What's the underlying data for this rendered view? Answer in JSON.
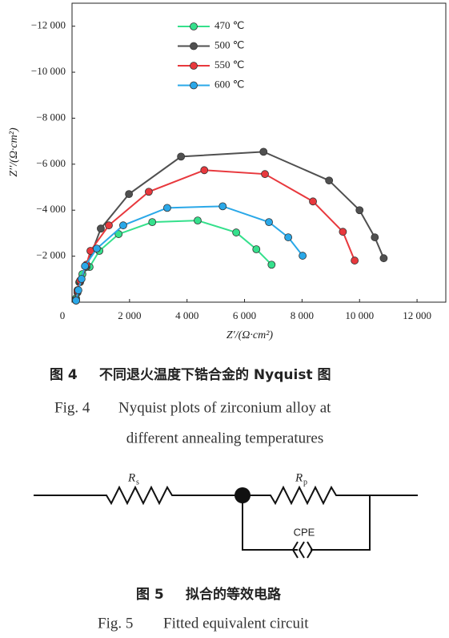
{
  "chart_data": {
    "type": "line",
    "x_label": "Z′/(Ω·cm²)",
    "y_label": "Z′′/(Ω·cm²)",
    "xlim": [
      0,
      13000
    ],
    "ylim": [
      0,
      -13000
    ],
    "xticks": [
      0,
      {
        "value": 2000,
        "label": "2 000"
      },
      {
        "value": 4000,
        "label": "4 000"
      },
      {
        "value": 6000,
        "label": "6 000"
      },
      {
        "value": 8000,
        "label": "8 000"
      },
      {
        "value": 10000,
        "label": "10 000"
      },
      {
        "value": 12000,
        "label": "12 000"
      }
    ],
    "yticks": [
      {
        "value": -2000,
        "label": "−2 000"
      },
      {
        "value": -4000,
        "label": "−4 000"
      },
      {
        "value": -6000,
        "label": "−6 000"
      },
      {
        "value": -8000,
        "label": "−8 000"
      },
      {
        "value": -10000,
        "label": "−10 000"
      },
      {
        "value": -12000,
        "label": "−12 000"
      }
    ],
    "legend": "upper-left",
    "series": [
      {
        "name": "470 ℃",
        "color": "#35e08c",
        "x": [
          140,
          190,
          250,
          360,
          610,
          950,
          1620,
          2790,
          4370,
          5710,
          6410,
          6940
        ],
        "values": [
          -170,
          -520,
          -870,
          -1220,
          -1530,
          -2230,
          -2960,
          -3480,
          -3550,
          -3030,
          -2300,
          -1630
        ]
      },
      {
        "name": "500 ℃",
        "color": "#505050",
        "x": [
          140,
          190,
          280,
          500,
          1000,
          1980,
          3790,
          6660,
          8940,
          10000,
          10530,
          10840
        ],
        "values": [
          -70,
          -420,
          -870,
          -1530,
          -3200,
          -4700,
          -6330,
          -6540,
          -5290,
          -4000,
          -2820,
          -1910
        ]
      },
      {
        "name": "550 ℃",
        "color": "#e8383d",
        "x": [
          140,
          190,
          280,
          500,
          640,
          1280,
          2670,
          4600,
          6710,
          8380,
          9420,
          9830
        ],
        "values": [
          -100,
          -490,
          -940,
          -1630,
          -2230,
          -3340,
          -4800,
          -5740,
          -5570,
          -4380,
          -3060,
          -1810
        ]
      },
      {
        "name": "600 ℃",
        "color": "#2aa8e8",
        "x": [
          140,
          220,
          330,
          450,
          860,
          1780,
          3310,
          5240,
          6850,
          7520,
          8020
        ],
        "values": [
          -70,
          -520,
          -1010,
          -1570,
          -2330,
          -3340,
          -4100,
          -4170,
          -3480,
          -2820,
          -2020
        ]
      }
    ]
  },
  "figure4": {
    "label_cn": "图 4",
    "title_cn": "不同退火温度下锆合金的 Nyquist 图",
    "label_en": "Fig. 4",
    "title_en_lines": [
      "Nyquist plots of zirconium alloy at",
      "different annealing temperatures"
    ]
  },
  "circuit": {
    "rs": {
      "label": "R",
      "subscript": "s"
    },
    "rp": {
      "label": "R",
      "subscript": "p"
    },
    "cpe": "CPE"
  },
  "figure5": {
    "label_cn": "图 5",
    "title_cn": "拟合的等效电路",
    "label_en": "Fig. 5",
    "title_en": "Fitted equivalent circuit"
  }
}
